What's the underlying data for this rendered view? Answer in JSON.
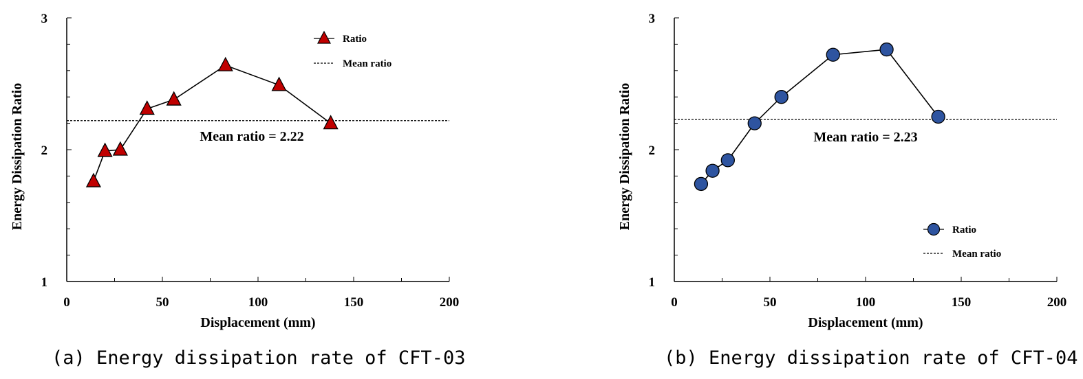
{
  "chart_data": [
    {
      "type": "line",
      "caption": "(a) Energy dissipation rate of CFT-03",
      "xlabel": "Displacement (mm)",
      "ylabel": "Energy Dissipation Ratio",
      "xlim": [
        0,
        200
      ],
      "ylim": [
        1,
        3
      ],
      "x_ticks": [
        "0",
        "50",
        "100",
        "150",
        "200"
      ],
      "y_ticks": [
        "1",
        "2",
        "3"
      ],
      "grid": false,
      "legend_position": "top-right",
      "series": [
        {
          "name": "Ratio",
          "marker": "triangle",
          "color": "#c00000",
          "x": [
            14,
            20,
            28,
            42,
            56,
            83,
            111,
            138
          ],
          "y": [
            1.76,
            1.99,
            2.0,
            2.31,
            2.38,
            2.64,
            2.49,
            2.2
          ]
        }
      ],
      "mean_line": {
        "name": "Mean ratio",
        "value": 2.22
      },
      "annotation": "Mean ratio = 2.22"
    },
    {
      "type": "line",
      "caption": "(b) Energy dissipation rate of CFT-04",
      "xlabel": "Displacement (mm)",
      "ylabel": "Energy Dissipation Ratio",
      "xlim": [
        0,
        200
      ],
      "ylim": [
        1,
        3
      ],
      "x_ticks": [
        "0",
        "50",
        "100",
        "150",
        "200"
      ],
      "y_ticks": [
        "1",
        "2",
        "3"
      ],
      "grid": false,
      "legend_position": "bottom-right",
      "series": [
        {
          "name": "Ratio",
          "marker": "circle",
          "color": "#2e54a0",
          "x": [
            14,
            20,
            28,
            42,
            56,
            83,
            111,
            138
          ],
          "y": [
            1.74,
            1.84,
            1.92,
            2.2,
            2.4,
            2.72,
            2.76,
            2.25
          ]
        }
      ],
      "mean_line": {
        "name": "Mean ratio",
        "value": 2.23
      },
      "annotation": "Mean ratio = 2.23"
    }
  ]
}
